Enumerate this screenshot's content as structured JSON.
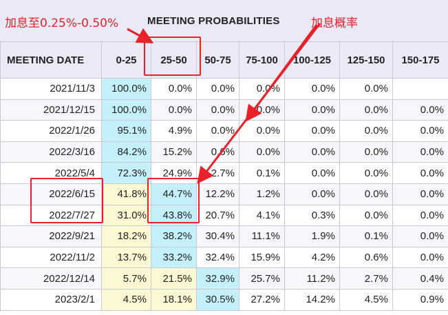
{
  "title": "MEETING PROBABILITIES",
  "annotations": {
    "left_note": "加息至0.25%-0.50%",
    "right_note": "加息概率"
  },
  "columns": [
    "MEETING DATE",
    "0-25",
    "25-50",
    "50-75",
    "75-100",
    "100-125",
    "125-150",
    "150-175"
  ],
  "rows": [
    {
      "date": "2021/11/3",
      "values": [
        "100.0%",
        "0.0%",
        "0.0%",
        "0.0%",
        "0.0%",
        "0.0%",
        ""
      ]
    },
    {
      "date": "2021/12/15",
      "values": [
        "100.0%",
        "0.0%",
        "0.0%",
        "0.0%",
        "0.0%",
        "0.0%",
        "0.0%"
      ]
    },
    {
      "date": "2022/1/26",
      "values": [
        "95.1%",
        "4.9%",
        "0.0%",
        "0.0%",
        "0.0%",
        "0.0%",
        "0.0%"
      ]
    },
    {
      "date": "2022/3/16",
      "values": [
        "84.2%",
        "15.2%",
        "0.6%",
        "0.0%",
        "0.0%",
        "0.0%",
        "0.0%"
      ]
    },
    {
      "date": "2022/5/4",
      "values": [
        "72.3%",
        "24.9%",
        "2.7%",
        "0.1%",
        "0.0%",
        "0.0%",
        "0.0%"
      ]
    },
    {
      "date": "2022/6/15",
      "values": [
        "41.8%",
        "44.7%",
        "12.2%",
        "1.2%",
        "0.0%",
        "0.0%",
        "0.0%"
      ]
    },
    {
      "date": "2022/7/27",
      "values": [
        "31.0%",
        "43.8%",
        "20.7%",
        "4.1%",
        "0.3%",
        "0.0%",
        "0.0%"
      ]
    },
    {
      "date": "2022/9/21",
      "values": [
        "18.2%",
        "38.2%",
        "30.4%",
        "11.1%",
        "1.9%",
        "0.1%",
        "0.0%"
      ]
    },
    {
      "date": "2022/11/2",
      "values": [
        "13.7%",
        "33.2%",
        "32.4%",
        "15.9%",
        "4.2%",
        "0.6%",
        "0.0%"
      ]
    },
    {
      "date": "2022/12/14",
      "values": [
        "5.7%",
        "21.5%",
        "32.9%",
        "25.7%",
        "11.2%",
        "2.7%",
        "0.4%"
      ]
    },
    {
      "date": "2023/2/1",
      "values": [
        "4.5%",
        "18.1%",
        "30.5%",
        "27.2%",
        "14.2%",
        "4.5%",
        "0.9%"
      ]
    }
  ],
  "highlights": {
    "blue": "#c4f0f9",
    "yellow": "#fdf8d4",
    "annotation_red": "#e8212a"
  },
  "blue_cells": [
    [
      0,
      0
    ],
    [
      1,
      0
    ],
    [
      2,
      0
    ],
    [
      3,
      0
    ],
    [
      4,
      0
    ],
    [
      5,
      1
    ],
    [
      6,
      1
    ],
    [
      7,
      1
    ],
    [
      8,
      1
    ],
    [
      9,
      2
    ],
    [
      10,
      2
    ]
  ],
  "yellow_cells": [
    [
      5,
      0
    ],
    [
      6,
      0
    ],
    [
      7,
      0
    ],
    [
      8,
      0
    ],
    [
      9,
      0
    ],
    [
      9,
      1
    ],
    [
      10,
      0
    ],
    [
      10,
      1
    ]
  ]
}
